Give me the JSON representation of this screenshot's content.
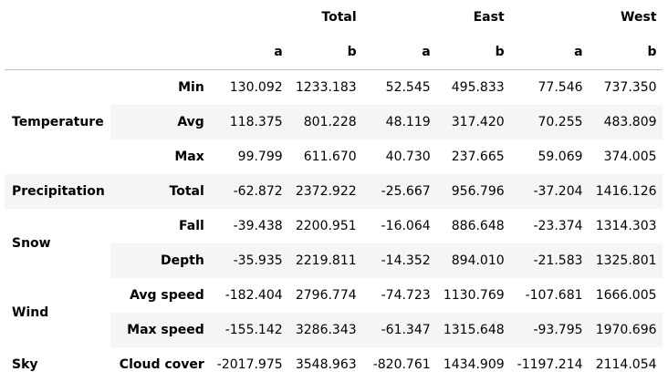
{
  "table": {
    "groups": [
      "Total",
      "East",
      "West"
    ],
    "subcolumns": [
      "a",
      "b",
      "a",
      "b",
      "a",
      "b"
    ],
    "rows": [
      {
        "l1": "Temperature",
        "l1_span": 3,
        "l2": "Min",
        "values": [
          "130.092",
          "1233.183",
          "52.545",
          "495.833",
          "77.546",
          "737.350"
        ]
      },
      {
        "l1": "",
        "l1_span": 0,
        "l2": "Avg",
        "values": [
          "118.375",
          "801.228",
          "48.119",
          "317.420",
          "70.255",
          "483.809"
        ]
      },
      {
        "l1": "",
        "l1_span": 0,
        "l2": "Max",
        "values": [
          "99.799",
          "611.670",
          "40.730",
          "237.665",
          "59.069",
          "374.005"
        ]
      },
      {
        "l1": "Precipitation",
        "l1_span": 1,
        "l2": "Total",
        "values": [
          "-62.872",
          "2372.922",
          "-25.667",
          "956.796",
          "-37.204",
          "1416.126"
        ]
      },
      {
        "l1": "Snow",
        "l1_span": 2,
        "l2": "Fall",
        "values": [
          "-39.438",
          "2200.951",
          "-16.064",
          "886.648",
          "-23.374",
          "1314.303"
        ]
      },
      {
        "l1": "",
        "l1_span": 0,
        "l2": "Depth",
        "values": [
          "-35.935",
          "2219.811",
          "-14.352",
          "894.010",
          "-21.583",
          "1325.801"
        ]
      },
      {
        "l1": "Wind",
        "l1_span": 2,
        "l2": "Avg speed",
        "values": [
          "-182.404",
          "2796.774",
          "-74.723",
          "1130.769",
          "-107.681",
          "1666.005"
        ]
      },
      {
        "l1": "",
        "l1_span": 0,
        "l2": "Max speed",
        "values": [
          "-155.142",
          "3286.343",
          "-61.347",
          "1315.648",
          "-93.795",
          "1970.696"
        ]
      },
      {
        "l1": "Sky",
        "l1_span": 1,
        "l2": "Cloud cover",
        "values": [
          "-2017.975",
          "3548.963",
          "-820.761",
          "1434.909",
          "-1197.214",
          "2114.054"
        ]
      }
    ]
  }
}
